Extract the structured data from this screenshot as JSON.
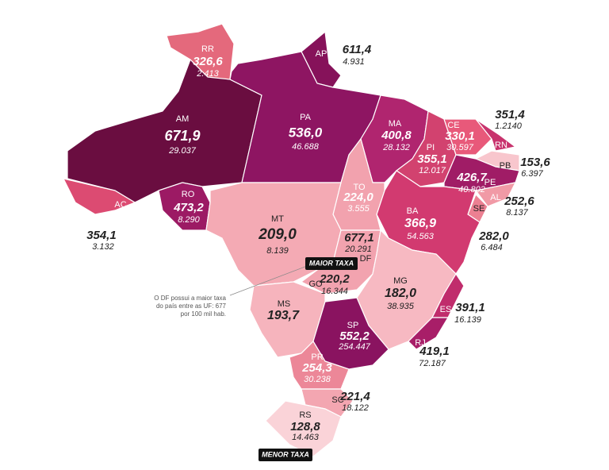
{
  "states": [
    {
      "abbr": "AM",
      "rate": "671,9",
      "count": "29.037",
      "color": "#6a0d40"
    },
    {
      "abbr": "RR",
      "rate": "326,6",
      "count": "2.413",
      "color": "#e4697c"
    },
    {
      "abbr": "AP",
      "rate": "611,4",
      "count": "4.931",
      "color": "#86125a"
    },
    {
      "abbr": "PA",
      "rate": "536,0",
      "count": "46.688",
      "color": "#8e1562"
    },
    {
      "abbr": "MA",
      "rate": "400,8",
      "count": "28.132",
      "color": "#b0256f"
    },
    {
      "abbr": "PI",
      "rate": "355,1",
      "count": "12.017",
      "color": "#d2426f"
    },
    {
      "abbr": "CE",
      "rate": "330,1",
      "count": "30.597",
      "color": "#e8597a"
    },
    {
      "abbr": "RN",
      "rate": "351,4",
      "count": "1.2140",
      "color": "#c8336d"
    },
    {
      "abbr": "PB",
      "rate": "153,6",
      "count": "6.397",
      "color": "#f8c6cd"
    },
    {
      "abbr": "PE",
      "rate": "426,7",
      "count": "40.802",
      "color": "#a01c66"
    },
    {
      "abbr": "AL",
      "rate": "252,6",
      "count": "8.137",
      "color": "#f19aa6"
    },
    {
      "abbr": "SE",
      "rate": "282,0",
      "count": "6.484",
      "color": "#ec8092"
    },
    {
      "abbr": "BA",
      "rate": "366,9",
      "count": "54.563",
      "color": "#d23a70"
    },
    {
      "abbr": "TO",
      "rate": "224,0",
      "count": "3.555",
      "color": "#f2a2ae"
    },
    {
      "abbr": "AC",
      "rate": "354,1",
      "count": "3.132",
      "color": "#dc4b72"
    },
    {
      "abbr": "RO",
      "rate": "473,2",
      "count": "8.290",
      "color": "#9c1a64"
    },
    {
      "abbr": "MT",
      "rate": "209,0",
      "count": "8.139",
      "color": "#f4aab4"
    },
    {
      "abbr": "DF",
      "rate": "677,1",
      "count": "20.291",
      "color": "#5e0a3a"
    },
    {
      "abbr": "GO",
      "rate": "220,2",
      "count": "16.344",
      "color": "#f2a3af"
    },
    {
      "abbr": "MG",
      "rate": "182,0",
      "count": "38.935",
      "color": "#f7b9c2"
    },
    {
      "abbr": "MS",
      "rate": "193,7",
      "color": "#f6b4bd"
    },
    {
      "abbr": "ES",
      "rate": "391,1",
      "count": "16.139",
      "color": "#c02c6c"
    },
    {
      "abbr": "SP",
      "rate": "552,2",
      "count": "254.447",
      "color": "#8a1360"
    },
    {
      "abbr": "RJ",
      "rate": "419,1",
      "count": "72.187",
      "color": "#a81e68"
    },
    {
      "abbr": "PR",
      "rate": "254,3",
      "count": "30.238",
      "color": "#ec8798"
    },
    {
      "abbr": "SC",
      "rate": "221,4",
      "count": "18.122",
      "color": "#f3a6b1"
    },
    {
      "abbr": "RS",
      "rate": "128,8",
      "count": "14.463",
      "color": "#fad3d8"
    }
  ],
  "annotations": {
    "max_label": "MAIOR TAXA",
    "min_label": "MENOR TAXA",
    "note": [
      "O DF possui a maior taxa",
      "do país entre as UF: 677",
      "por 100 mil hab."
    ]
  }
}
